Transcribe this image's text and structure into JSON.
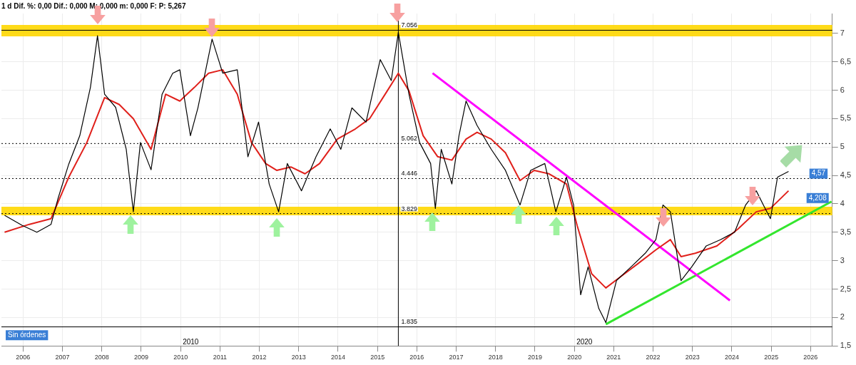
{
  "chart_data": {
    "type": "line",
    "title": "1 d Dif. %: 0,00 Dif.: 0,000 M: 0,000 m: 0,000 F: P: 5,267",
    "xlim": [
      2005.45,
      2026.55
    ],
    "xticks": [
      2006,
      2007,
      2008,
      2009,
      2010,
      2011,
      2012,
      2013,
      2014,
      2015,
      2016,
      2017,
      2018,
      2019,
      2020,
      2021,
      2022,
      2023,
      2024,
      2025,
      2026
    ],
    "ylim": [
      1.5,
      7.35
    ],
    "yticks": [
      {
        "value": 1.5,
        "label": "1,5"
      },
      2,
      {
        "value": 2.5,
        "label": "2,5"
      },
      3,
      {
        "value": 3.5,
        "label": "3,5"
      },
      4,
      {
        "value": 4.5,
        "label": "4,5"
      },
      5,
      {
        "value": 5.5,
        "label": "5,5"
      },
      6,
      {
        "value": 6.5,
        "label": "6,5"
      },
      7
    ],
    "grid": true,
    "series": [
      {
        "color": "#000000",
        "x": [
          2005.53,
          2005.98,
          2006.35,
          2006.71,
          2006.89,
          2007.16,
          2007.44,
          2007.71,
          2007.89,
          2008.07,
          2008.35,
          2008.62,
          2008.8,
          2008.98,
          2009.25,
          2009.53,
          2009.8,
          2009.98,
          2010.25,
          2010.44,
          2010.8,
          2011.07,
          2011.44,
          2011.71,
          2011.98,
          2012.25,
          2012.49,
          2012.71,
          2013.07,
          2013.44,
          2013.8,
          2014.07,
          2014.35,
          2014.71,
          2015.07,
          2015.35,
          2015.53,
          2015.8,
          2016.07,
          2016.35,
          2016.47,
          2016.62,
          2016.89,
          2017.07,
          2017.25,
          2017.53,
          2017.89,
          2018.25,
          2018.62,
          2018.89,
          2019.25,
          2019.53,
          2019.8,
          2019.98,
          2020.16,
          2020.35,
          2020.62,
          2020.8,
          2021.07,
          2021.44,
          2021.8,
          2022.07,
          2022.25,
          2022.44,
          2022.71,
          2022.98,
          2023.35,
          2023.71,
          2024.07,
          2024.35,
          2024.62,
          2024.8,
          2024.98,
          2025.16,
          2025.44
        ],
        "values": [
          3.8,
          3.62,
          3.5,
          3.64,
          4.1,
          4.7,
          5.2,
          6.05,
          6.96,
          5.93,
          5.7,
          4.96,
          3.86,
          5.08,
          4.6,
          5.93,
          6.3,
          6.36,
          5.2,
          5.69,
          6.9,
          6.3,
          6.36,
          4.83,
          5.44,
          4.35,
          3.86,
          4.71,
          4.23,
          4.83,
          5.32,
          4.96,
          5.69,
          5.44,
          6.54,
          6.17,
          7.02,
          5.93,
          5.08,
          4.71,
          3.92,
          4.96,
          4.35,
          5.2,
          5.81,
          5.38,
          4.96,
          4.59,
          3.98,
          4.59,
          4.71,
          3.86,
          4.47,
          3.98,
          2.4,
          2.89,
          2.16,
          1.91,
          2.65,
          2.89,
          3.13,
          3.37,
          3.98,
          3.86,
          2.65,
          2.89,
          3.26,
          3.37,
          3.5,
          3.98,
          4.23,
          3.98,
          3.74,
          4.47,
          4.57
        ]
      },
      {
        "color": "#e0201b",
        "x": [
          2005.53,
          2006.16,
          2006.71,
          2007.16,
          2007.62,
          2008.07,
          2008.44,
          2008.8,
          2009.25,
          2009.62,
          2009.98,
          2010.35,
          2010.71,
          2011.07,
          2011.44,
          2011.8,
          2012.16,
          2012.44,
          2012.8,
          2013.16,
          2013.53,
          2013.98,
          2014.44,
          2014.8,
          2015.25,
          2015.53,
          2015.8,
          2016.16,
          2016.53,
          2016.89,
          2017.25,
          2017.53,
          2017.89,
          2018.25,
          2018.62,
          2018.98,
          2019.35,
          2019.8,
          2020.07,
          2020.44,
          2020.8,
          2021.16,
          2021.62,
          2022.07,
          2022.44,
          2022.71,
          2023.07,
          2023.62,
          2024.16,
          2024.62,
          2024.98,
          2025.44
        ],
        "values": [
          3.5,
          3.64,
          3.74,
          4.47,
          5.08,
          5.87,
          5.75,
          5.5,
          4.96,
          5.93,
          5.81,
          6.05,
          6.3,
          6.36,
          5.93,
          5.08,
          4.71,
          4.59,
          4.65,
          4.53,
          4.71,
          5.14,
          5.32,
          5.5,
          5.99,
          6.3,
          5.99,
          5.2,
          4.83,
          4.77,
          5.14,
          5.26,
          5.14,
          4.9,
          4.41,
          4.59,
          4.53,
          4.35,
          3.62,
          2.77,
          2.52,
          2.71,
          2.95,
          3.19,
          3.37,
          3.07,
          3.13,
          3.26,
          3.56,
          3.86,
          3.92,
          4.23
        ]
      },
      {
        "color": "#ff00ff",
        "x": [
          2016.4,
          2023.95
        ],
        "values": [
          6.3,
          2.3
        ]
      },
      {
        "color": "#33e62e",
        "x": [
          2020.8,
          2026.53
        ],
        "values": [
          1.88,
          4.04
        ]
      }
    ],
    "bands": [
      {
        "axis": "y",
        "from": 6.95,
        "to": 7.15,
        "color": "#ffd700"
      },
      {
        "axis": "y",
        "from": 3.8,
        "to": 3.95,
        "color": "#ffd700"
      }
    ],
    "ref_lines": [
      {
        "axis": "x",
        "value": 2015.53,
        "color": "#000000",
        "line_style": "solid"
      },
      {
        "axis": "y",
        "value": 7.056,
        "label": "7.056",
        "color": "#000000",
        "line_style": "solid"
      },
      {
        "axis": "y",
        "value": 5.062,
        "label": "5.062",
        "color": "#000000",
        "line_style": "dotted"
      },
      {
        "axis": "y",
        "value": 4.446,
        "label": "4.446",
        "color": "#000000",
        "line_style": "dotted"
      },
      {
        "axis": "y",
        "value": 3.829,
        "label": "3.829",
        "color": "#000000",
        "line_style": "dotted"
      },
      {
        "axis": "y",
        "value": 1.835,
        "label": "1.835",
        "color": "#000000",
        "line_style": "solid"
      }
    ],
    "annotations": [
      "Sin órdenes",
      "2010",
      "2020",
      "4,57",
      "4,208"
    ]
  }
}
